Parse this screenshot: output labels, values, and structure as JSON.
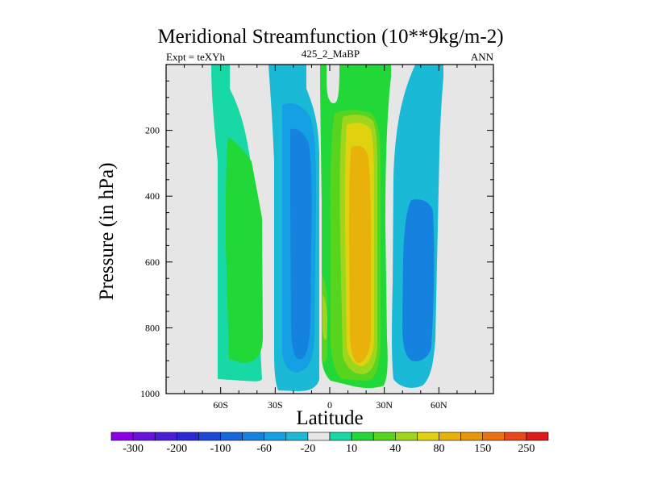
{
  "chart_data": {
    "type": "contour",
    "title": "Meridional Streamfunction (10**9kg/m-2)",
    "left_string": "Expt = teXYh",
    "center_string": "425_2_MaBP",
    "right_string": "ANN",
    "xlabel": "Latitude",
    "ylabel": "Pressure (in hPa)",
    "xlim": [
      -90,
      90
    ],
    "ylim": [
      1000,
      0
    ],
    "y_inverted": true,
    "x_ticks": [
      {
        "value": -60,
        "label": "60S"
      },
      {
        "value": -30,
        "label": "30S"
      },
      {
        "value": 0,
        "label": "0"
      },
      {
        "value": 30,
        "label": "30N"
      },
      {
        "value": 60,
        "label": "60N"
      }
    ],
    "y_ticks": [
      {
        "value": 200,
        "label": "200"
      },
      {
        "value": 400,
        "label": "400"
      },
      {
        "value": 600,
        "label": "600"
      },
      {
        "value": 800,
        "label": "800"
      },
      {
        "value": 1000,
        "label": "1000"
      }
    ],
    "missing_color": "#e6e6e6",
    "levels": [
      -300,
      -250,
      -200,
      -150,
      -100,
      -80,
      -60,
      -40,
      -20,
      -10,
      10,
      20,
      40,
      60,
      80,
      100,
      150,
      200,
      250,
      300
    ],
    "colorbar_labels": [
      "-300",
      "-200",
      "-100",
      "-60",
      "-20",
      "10",
      "40",
      "80",
      "150",
      "250"
    ],
    "colors": [
      "#8c00e6",
      "#6a11dc",
      "#4b1ed6",
      "#2a2ad2",
      "#1c46d6",
      "#1866dc",
      "#1682e0",
      "#14a0e2",
      "#1abad6",
      "#e6e6e6",
      "#18d8a6",
      "#22d838",
      "#56d41e",
      "#9ed61e",
      "#e0d20e",
      "#e8b20a",
      "#e8960a",
      "#ea7212",
      "#e6481a",
      "#e01a1a"
    ],
    "cells": [
      {
        "name": "southern-hadley-band",
        "lat": [
          -71,
          -60
        ],
        "p": [
          0,
          960
        ],
        "level": 10
      },
      {
        "name": "southern-ferrel-band",
        "lat": [
          -35,
          -22
        ],
        "p": [
          0,
          985
        ],
        "level": -20
      },
      {
        "name": "southern-ferrel-core",
        "lat": [
          -30,
          -20
        ],
        "p": [
          160,
          950
        ],
        "level": -40
      },
      {
        "name": "hadley-cell",
        "lat": [
          -5,
          27
        ],
        "p": [
          0,
          980
        ],
        "level": 20
      },
      {
        "name": "hadley-core",
        "lat": [
          5,
          22
        ],
        "p": [
          180,
          900
        ],
        "level": 80
      },
      {
        "name": "northern-ferrel-band",
        "lat": [
          28,
          49
        ],
        "p": [
          0,
          965
        ],
        "level": -20
      },
      {
        "name": "northern-ferrel-core",
        "lat": [
          37,
          45
        ],
        "p": [
          400,
          940
        ],
        "level": -40
      }
    ]
  }
}
